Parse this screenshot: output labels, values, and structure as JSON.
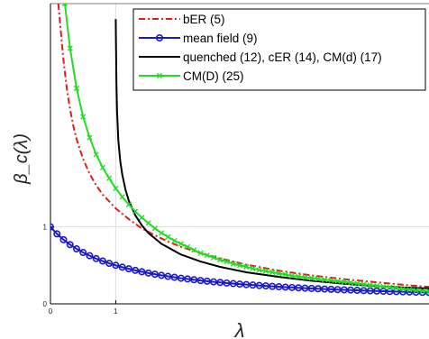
{
  "chart_data": {
    "type": "line",
    "title": "",
    "xlabel": "λ",
    "ylabel": "β_c(λ)",
    "xlim": [
      0,
      5.8
    ],
    "ylim": [
      0,
      3.9
    ],
    "x_ticks": [
      {
        "value": 0,
        "label": "0"
      },
      {
        "value": 1,
        "label": "1"
      }
    ],
    "y_ticks": [
      {
        "value": 0,
        "label": "0"
      },
      {
        "value": 1,
        "label": "1"
      }
    ],
    "grid": true,
    "legend_position": "top-right",
    "series": [
      {
        "name": "bER (5)",
        "color": "#e41a1c",
        "line_style": "dash-dot",
        "marker": "none",
        "x": [
          0.12,
          0.15,
          0.2,
          0.25,
          0.3,
          0.35,
          0.4,
          0.5,
          0.6,
          0.7,
          0.8,
          1.0,
          1.2,
          1.4,
          1.6,
          1.8,
          2.0,
          2.3,
          2.6,
          3.0,
          3.5,
          4.0,
          4.5,
          5.0,
          5.5,
          5.8
        ],
        "y": [
          3.9,
          3.62,
          3.16,
          2.8,
          2.53,
          2.31,
          2.14,
          1.88,
          1.69,
          1.54,
          1.42,
          1.24,
          1.1,
          0.98,
          0.89,
          0.81,
          0.74,
          0.66,
          0.59,
          0.51,
          0.43,
          0.37,
          0.32,
          0.28,
          0.24,
          0.22
        ]
      },
      {
        "name": "mean field (9)",
        "color": "#1a1acc",
        "line_style": "solid",
        "marker": "circle",
        "x": [
          0.0,
          0.1,
          0.2,
          0.3,
          0.4,
          0.5,
          0.6,
          0.7,
          0.8,
          0.9,
          1.0,
          1.1,
          1.2,
          1.3,
          1.4,
          1.5,
          1.6,
          1.7,
          1.8,
          1.9,
          2.0,
          2.1,
          2.2,
          2.3,
          2.4,
          2.5,
          2.6,
          2.7,
          2.8,
          2.9,
          3.0,
          3.1,
          3.2,
          3.3,
          3.4,
          3.5,
          3.6,
          3.7,
          3.8,
          3.9,
          4.0,
          4.1,
          4.2,
          4.3,
          4.4,
          4.5,
          4.6,
          4.7,
          4.8,
          4.9,
          5.0,
          5.1,
          5.2,
          5.3,
          5.4,
          5.5,
          5.6,
          5.7,
          5.8
        ],
        "y": [
          1.0,
          0.909,
          0.833,
          0.769,
          0.714,
          0.667,
          0.625,
          0.588,
          0.556,
          0.526,
          0.5,
          0.476,
          0.455,
          0.435,
          0.417,
          0.4,
          0.385,
          0.37,
          0.357,
          0.345,
          0.333,
          0.323,
          0.313,
          0.303,
          0.294,
          0.286,
          0.278,
          0.27,
          0.263,
          0.256,
          0.25,
          0.244,
          0.238,
          0.233,
          0.227,
          0.222,
          0.217,
          0.213,
          0.208,
          0.204,
          0.2,
          0.196,
          0.192,
          0.189,
          0.185,
          0.182,
          0.179,
          0.175,
          0.172,
          0.169,
          0.167,
          0.164,
          0.161,
          0.159,
          0.156,
          0.154,
          0.152,
          0.149,
          0.147
        ]
      },
      {
        "name": "quenched (12), cER (14), CM(d) (17)",
        "color": "#000000",
        "line_style": "solid",
        "marker": "none",
        "x": [
          1.0,
          1.005,
          1.01,
          1.02,
          1.04,
          1.07,
          1.1,
          1.15,
          1.2,
          1.3,
          1.4,
          1.5,
          1.7,
          2.0,
          2.3,
          2.6,
          3.0,
          3.5,
          4.0,
          4.5,
          5.0,
          5.5,
          5.8
        ],
        "y": [
          3.7,
          3.3,
          2.9,
          2.5,
          2.12,
          1.85,
          1.68,
          1.48,
          1.34,
          1.15,
          1.02,
          0.92,
          0.78,
          0.64,
          0.55,
          0.48,
          0.41,
          0.35,
          0.3,
          0.26,
          0.23,
          0.21,
          0.2
        ]
      },
      {
        "name": "CM(D) (25)",
        "color": "#22dd22",
        "line_style": "solid",
        "marker": "x",
        "x": [
          0.22,
          0.3,
          0.4,
          0.5,
          0.6,
          0.7,
          0.8,
          0.9,
          1.0,
          1.1,
          1.2,
          1.3,
          1.4,
          1.5,
          1.6,
          1.7,
          1.8,
          1.9,
          2.0,
          2.1,
          2.2,
          2.3,
          2.4,
          2.5,
          2.6,
          2.7,
          2.8,
          2.9,
          3.0,
          3.1,
          3.2,
          3.3,
          3.4,
          3.5,
          3.6,
          3.7,
          3.8,
          3.9,
          4.0,
          4.1,
          4.2,
          4.3,
          4.4,
          4.5,
          4.6,
          4.7,
          4.8,
          4.9,
          5.0,
          5.1,
          5.2,
          5.3,
          5.4,
          5.5,
          5.6,
          5.7,
          5.8
        ],
        "y": [
          3.9,
          3.32,
          2.8,
          2.43,
          2.16,
          1.94,
          1.77,
          1.63,
          1.5,
          1.39,
          1.29,
          1.2,
          1.12,
          1.05,
          0.98,
          0.92,
          0.87,
          0.82,
          0.78,
          0.74,
          0.7,
          0.66,
          0.63,
          0.6,
          0.57,
          0.55,
          0.52,
          0.5,
          0.48,
          0.46,
          0.44,
          0.425,
          0.41,
          0.395,
          0.38,
          0.365,
          0.355,
          0.345,
          0.335,
          0.325,
          0.315,
          0.305,
          0.295,
          0.285,
          0.275,
          0.265,
          0.255,
          0.245,
          0.235,
          0.225,
          0.215,
          0.205,
          0.195,
          0.185,
          0.175,
          0.17,
          0.165
        ]
      }
    ]
  }
}
